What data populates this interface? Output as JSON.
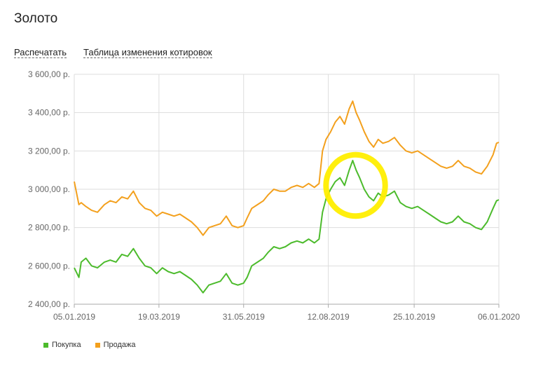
{
  "title": "Золото",
  "actions": {
    "print_label": "Распечатать",
    "table_label": "Таблица изменения котировок"
  },
  "colors": {
    "buy": "#4cbb2c",
    "sell": "#f3a01d",
    "highlight": "#ffee00",
    "grid": "#dddddd"
  },
  "chart_data": {
    "type": "line",
    "title": "",
    "xlabel": "",
    "ylabel": "",
    "ylim": [
      2400,
      3600
    ],
    "xlim": [
      "2019-01-05",
      "2020-01-06"
    ],
    "grid": true,
    "legend_position": "bottom-left",
    "y_ticks": [
      {
        "value": 2400,
        "label": "2 400,00 р."
      },
      {
        "value": 2600,
        "label": "2 600,00 р."
      },
      {
        "value": 2800,
        "label": "2 800,00 р."
      },
      {
        "value": 3000,
        "label": "3 000,00 р."
      },
      {
        "value": 3200,
        "label": "3 200,00 р."
      },
      {
        "value": 3400,
        "label": "3 400,00 р."
      },
      {
        "value": 3600,
        "label": "3 600,00 р."
      }
    ],
    "x_ticks": [
      {
        "value": "2019-01-05",
        "label": "05.01.2019"
      },
      {
        "value": "2019-03-19",
        "label": "19.03.2019"
      },
      {
        "value": "2019-05-31",
        "label": "31.05.2019"
      },
      {
        "value": "2019-08-12",
        "label": "12.08.2019"
      },
      {
        "value": "2019-10-25",
        "label": "25.10.2019"
      },
      {
        "value": "2020-01-06",
        "label": "06.01.2020"
      }
    ],
    "series": [
      {
        "name": "Покупка",
        "color": "#4cbb2c",
        "points": [
          [
            "2019-01-05",
            2590
          ],
          [
            "2019-01-09",
            2540
          ],
          [
            "2019-01-11",
            2620
          ],
          [
            "2019-01-15",
            2640
          ],
          [
            "2019-01-20",
            2600
          ],
          [
            "2019-01-25",
            2590
          ],
          [
            "2019-01-31",
            2620
          ],
          [
            "2019-02-05",
            2630
          ],
          [
            "2019-02-10",
            2620
          ],
          [
            "2019-02-15",
            2660
          ],
          [
            "2019-02-20",
            2650
          ],
          [
            "2019-02-25",
            2690
          ],
          [
            "2019-03-02",
            2640
          ],
          [
            "2019-03-07",
            2600
          ],
          [
            "2019-03-12",
            2590
          ],
          [
            "2019-03-17",
            2560
          ],
          [
            "2019-03-22",
            2590
          ],
          [
            "2019-03-27",
            2570
          ],
          [
            "2019-04-01",
            2560
          ],
          [
            "2019-04-06",
            2570
          ],
          [
            "2019-04-11",
            2550
          ],
          [
            "2019-04-16",
            2530
          ],
          [
            "2019-04-21",
            2500
          ],
          [
            "2019-04-26",
            2460
          ],
          [
            "2019-05-01",
            2500
          ],
          [
            "2019-05-06",
            2510
          ],
          [
            "2019-05-11",
            2520
          ],
          [
            "2019-05-16",
            2560
          ],
          [
            "2019-05-21",
            2510
          ],
          [
            "2019-05-26",
            2500
          ],
          [
            "2019-05-31",
            2510
          ],
          [
            "2019-06-03",
            2540
          ],
          [
            "2019-06-07",
            2600
          ],
          [
            "2019-06-12",
            2620
          ],
          [
            "2019-06-17",
            2640
          ],
          [
            "2019-06-21",
            2670
          ],
          [
            "2019-06-26",
            2700
          ],
          [
            "2019-07-01",
            2690
          ],
          [
            "2019-07-06",
            2700
          ],
          [
            "2019-07-11",
            2720
          ],
          [
            "2019-07-16",
            2730
          ],
          [
            "2019-07-21",
            2720
          ],
          [
            "2019-07-26",
            2740
          ],
          [
            "2019-07-31",
            2720
          ],
          [
            "2019-08-04",
            2740
          ],
          [
            "2019-08-07",
            2880
          ],
          [
            "2019-08-10",
            2950
          ],
          [
            "2019-08-14",
            3000
          ],
          [
            "2019-08-18",
            3040
          ],
          [
            "2019-08-22",
            3060
          ],
          [
            "2019-08-26",
            3020
          ],
          [
            "2019-08-30",
            3100
          ],
          [
            "2019-09-02",
            3150
          ],
          [
            "2019-09-05",
            3100
          ],
          [
            "2019-09-08",
            3060
          ],
          [
            "2019-09-12",
            3000
          ],
          [
            "2019-09-16",
            2960
          ],
          [
            "2019-09-20",
            2940
          ],
          [
            "2019-09-24",
            2980
          ],
          [
            "2019-09-28",
            2960
          ],
          [
            "2019-10-03",
            2970
          ],
          [
            "2019-10-08",
            2990
          ],
          [
            "2019-10-13",
            2930
          ],
          [
            "2019-10-18",
            2910
          ],
          [
            "2019-10-23",
            2900
          ],
          [
            "2019-10-28",
            2910
          ],
          [
            "2019-11-02",
            2890
          ],
          [
            "2019-11-07",
            2870
          ],
          [
            "2019-11-12",
            2850
          ],
          [
            "2019-11-17",
            2830
          ],
          [
            "2019-11-22",
            2820
          ],
          [
            "2019-11-27",
            2830
          ],
          [
            "2019-12-02",
            2860
          ],
          [
            "2019-12-07",
            2830
          ],
          [
            "2019-12-12",
            2820
          ],
          [
            "2019-12-17",
            2800
          ],
          [
            "2019-12-22",
            2790
          ],
          [
            "2019-12-27",
            2830
          ],
          [
            "2020-01-01",
            2900
          ],
          [
            "2020-01-04",
            2940
          ],
          [
            "2020-01-06",
            2945
          ]
        ]
      },
      {
        "name": "Продажа",
        "color": "#f3a01d",
        "points": [
          [
            "2019-01-05",
            3040
          ],
          [
            "2019-01-09",
            2920
          ],
          [
            "2019-01-11",
            2930
          ],
          [
            "2019-01-15",
            2910
          ],
          [
            "2019-01-20",
            2890
          ],
          [
            "2019-01-25",
            2880
          ],
          [
            "2019-01-31",
            2920
          ],
          [
            "2019-02-05",
            2940
          ],
          [
            "2019-02-10",
            2930
          ],
          [
            "2019-02-15",
            2960
          ],
          [
            "2019-02-20",
            2950
          ],
          [
            "2019-02-25",
            2990
          ],
          [
            "2019-03-02",
            2930
          ],
          [
            "2019-03-07",
            2900
          ],
          [
            "2019-03-12",
            2890
          ],
          [
            "2019-03-17",
            2860
          ],
          [
            "2019-03-22",
            2880
          ],
          [
            "2019-03-27",
            2870
          ],
          [
            "2019-04-01",
            2860
          ],
          [
            "2019-04-06",
            2870
          ],
          [
            "2019-04-11",
            2850
          ],
          [
            "2019-04-16",
            2830
          ],
          [
            "2019-04-21",
            2800
          ],
          [
            "2019-04-26",
            2760
          ],
          [
            "2019-05-01",
            2800
          ],
          [
            "2019-05-06",
            2810
          ],
          [
            "2019-05-11",
            2820
          ],
          [
            "2019-05-16",
            2860
          ],
          [
            "2019-05-21",
            2810
          ],
          [
            "2019-05-26",
            2800
          ],
          [
            "2019-05-31",
            2810
          ],
          [
            "2019-06-03",
            2850
          ],
          [
            "2019-06-07",
            2900
          ],
          [
            "2019-06-12",
            2920
          ],
          [
            "2019-06-17",
            2940
          ],
          [
            "2019-06-21",
            2970
          ],
          [
            "2019-06-26",
            3000
          ],
          [
            "2019-07-01",
            2990
          ],
          [
            "2019-07-06",
            2990
          ],
          [
            "2019-07-11",
            3010
          ],
          [
            "2019-07-16",
            3020
          ],
          [
            "2019-07-21",
            3010
          ],
          [
            "2019-07-26",
            3030
          ],
          [
            "2019-07-31",
            3010
          ],
          [
            "2019-08-04",
            3030
          ],
          [
            "2019-08-07",
            3200
          ],
          [
            "2019-08-10",
            3260
          ],
          [
            "2019-08-14",
            3300
          ],
          [
            "2019-08-18",
            3350
          ],
          [
            "2019-08-22",
            3380
          ],
          [
            "2019-08-26",
            3340
          ],
          [
            "2019-08-30",
            3420
          ],
          [
            "2019-09-02",
            3460
          ],
          [
            "2019-09-05",
            3400
          ],
          [
            "2019-09-08",
            3360
          ],
          [
            "2019-09-12",
            3300
          ],
          [
            "2019-09-16",
            3250
          ],
          [
            "2019-09-20",
            3220
          ],
          [
            "2019-09-24",
            3260
          ],
          [
            "2019-09-28",
            3240
          ],
          [
            "2019-10-03",
            3250
          ],
          [
            "2019-10-08",
            3270
          ],
          [
            "2019-10-13",
            3230
          ],
          [
            "2019-10-18",
            3200
          ],
          [
            "2019-10-23",
            3190
          ],
          [
            "2019-10-28",
            3200
          ],
          [
            "2019-11-02",
            3180
          ],
          [
            "2019-11-07",
            3160
          ],
          [
            "2019-11-12",
            3140
          ],
          [
            "2019-11-17",
            3120
          ],
          [
            "2019-11-22",
            3110
          ],
          [
            "2019-11-27",
            3120
          ],
          [
            "2019-12-02",
            3150
          ],
          [
            "2019-12-07",
            3120
          ],
          [
            "2019-12-12",
            3110
          ],
          [
            "2019-12-17",
            3090
          ],
          [
            "2019-12-22",
            3080
          ],
          [
            "2019-12-27",
            3120
          ],
          [
            "2020-01-01",
            3180
          ],
          [
            "2020-01-04",
            3240
          ],
          [
            "2020-01-06",
            3245
          ]
        ]
      }
    ],
    "annotations": [
      {
        "type": "highlight-ellipse",
        "x_from": "2019-08-10",
        "x_to": "2019-09-30",
        "y_from": 2860,
        "y_to": 3180,
        "color": "#ffee00"
      }
    ]
  }
}
